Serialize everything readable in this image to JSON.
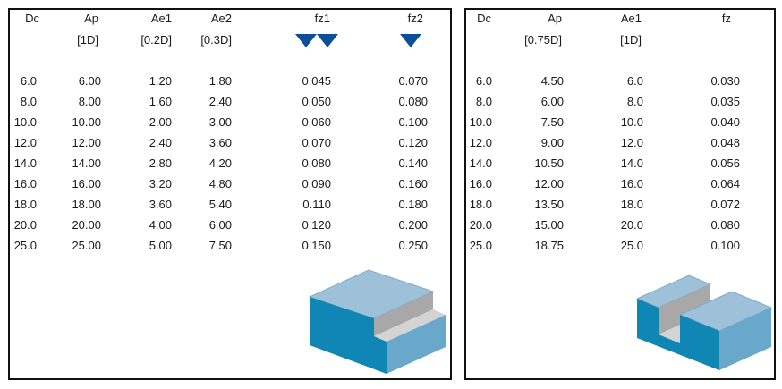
{
  "left_table": {
    "headers": [
      "Dc",
      "Ap",
      "Ae1",
      "Ae2",
      "fz1",
      "fz2"
    ],
    "subheaders": [
      "",
      "[1D]",
      "[0.2D]",
      "[0.3D]",
      "",
      ""
    ],
    "direction_markers": [
      {
        "column": "fz1",
        "icon": "down-triangle-icon",
        "count": 2,
        "color": "#0b4f9a"
      },
      {
        "column": "fz2",
        "icon": "down-triangle-icon",
        "count": 1,
        "color": "#0b4f9a"
      }
    ],
    "rows": [
      [
        "6.0",
        "6.00",
        "1.20",
        "1.80",
        "0.045",
        "0.070"
      ],
      [
        "8.0",
        "8.00",
        "1.60",
        "2.40",
        "0.050",
        "0.080"
      ],
      [
        "10.0",
        "10.00",
        "2.00",
        "3.00",
        "0.060",
        "0.100"
      ],
      [
        "12.0",
        "12.00",
        "2.40",
        "3.60",
        "0.070",
        "0.120"
      ],
      [
        "14.0",
        "14.00",
        "2.80",
        "4.20",
        "0.080",
        "0.140"
      ],
      [
        "16.0",
        "16.00",
        "3.20",
        "4.80",
        "0.090",
        "0.160"
      ],
      [
        "18.0",
        "18.00",
        "3.60",
        "5.40",
        "0.110",
        "0.180"
      ],
      [
        "20.0",
        "20.00",
        "4.00",
        "6.00",
        "0.120",
        "0.200"
      ],
      [
        "25.0",
        "25.00",
        "5.00",
        "7.50",
        "0.150",
        "0.250"
      ]
    ],
    "illustration": "step-shoulder-block-icon"
  },
  "right_table": {
    "headers": [
      "Dc",
      "Ap",
      "Ae1",
      "fz"
    ],
    "subheaders": [
      "",
      "[0.75D]",
      "[1D]",
      ""
    ],
    "rows": [
      [
        "6.0",
        "4.50",
        "6.0",
        "0.030"
      ],
      [
        "8.0",
        "6.00",
        "8.0",
        "0.035"
      ],
      [
        "10.0",
        "7.50",
        "10.0",
        "0.040"
      ],
      [
        "12.0",
        "9.00",
        "12.0",
        "0.048"
      ],
      [
        "14.0",
        "10.50",
        "14.0",
        "0.056"
      ],
      [
        "16.0",
        "12.00",
        "16.0",
        "0.064"
      ],
      [
        "18.0",
        "13.50",
        "18.0",
        "0.072"
      ],
      [
        "20.0",
        "15.00",
        "20.0",
        "0.080"
      ],
      [
        "25.0",
        "18.75",
        "25.0",
        "0.100"
      ]
    ],
    "illustration": "slot-block-icon"
  },
  "colors": {
    "block_top": "#9dc1d9",
    "block_front": "#0f86b4",
    "block_side": "#6aa8cb",
    "cut_face": "#a8a8a8",
    "cut_floor": "#d4d4d4",
    "marker": "#0b4f9a"
  }
}
